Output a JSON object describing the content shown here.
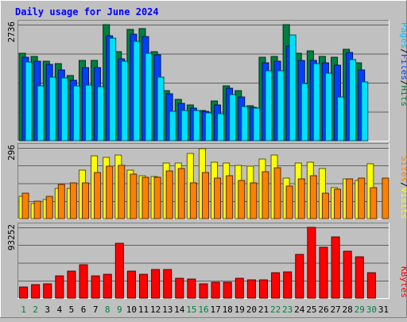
{
  "title": "Daily usage for June 2024",
  "colors": {
    "background": "#C0C0C0",
    "hits": "#008040",
    "files": "#0040FF",
    "pages": "#00E0FF",
    "visits": "#FFFF00",
    "sites": "#FF8000",
    "kbytes": "#FF0000",
    "weekend_day": "#008040",
    "weekday": "#000000"
  },
  "legend": {
    "top": [
      {
        "text": "Pages",
        "color": "#00C0FF"
      },
      {
        "text": "/",
        "color": "#000000"
      },
      {
        "text": "Files",
        "color": "#0040FF"
      },
      {
        "text": "/",
        "color": "#000000"
      },
      {
        "text": "Hits",
        "color": "#008040"
      }
    ],
    "middle": [
      {
        "text": "Sites",
        "color": "#FF8000"
      },
      {
        "text": "/",
        "color": "#000000"
      },
      {
        "text": "Visits",
        "color": "#FFFF00"
      }
    ],
    "bottom": [
      {
        "text": "KBytes",
        "color": "#FF0000"
      }
    ]
  },
  "chart_data": {
    "type": "bar",
    "x": [
      "1",
      "2",
      "3",
      "4",
      "5",
      "6",
      "7",
      "8",
      "9",
      "10",
      "11",
      "12",
      "13",
      "14",
      "15",
      "16",
      "17",
      "18",
      "19",
      "20",
      "21",
      "22",
      "23",
      "24",
      "25",
      "26",
      "27",
      "28",
      "29",
      "30",
      "31"
    ],
    "weekend_days": [
      "1",
      "2",
      "8",
      "9",
      "15",
      "16",
      "22",
      "23",
      "29",
      "30"
    ],
    "panels": [
      {
        "ymax_label": "2736",
        "ymax": 2736,
        "series": [
          {
            "name": "Hits",
            "values": [
              2060,
              1980,
              1870,
              1820,
              1540,
              1890,
              1890,
              2736,
              2100,
              2620,
              2650,
              2090,
              1180,
              970,
              840,
              720,
              930,
              1290,
              1180,
              830,
              1960,
              1980,
              2736,
              2070,
              2120,
              1980,
              1970,
              2150,
              1840,
              0,
              0
            ]
          },
          {
            "name": "Files",
            "values": [
              1960,
              1880,
              1800,
              1660,
              1420,
              1720,
              1720,
              2480,
              1930,
              2520,
              2460,
              2020,
              1110,
              890,
              760,
              700,
              850,
              1230,
              1040,
              780,
              1840,
              1880,
              2230,
              1890,
              1900,
              1840,
              1780,
              2080,
              1670,
              0,
              0
            ]
          },
          {
            "name": "Pages",
            "values": [
              1860,
              1290,
              1500,
              1480,
              1300,
              1320,
              1280,
              2420,
              1870,
              2340,
              2060,
              1500,
              700,
              710,
              710,
              650,
              630,
              1080,
              800,
              760,
              1640,
              1650,
              2500,
              1350,
              1820,
              1600,
              1040,
              1910,
              1390,
              0,
              0
            ]
          }
        ]
      },
      {
        "ymax_label": "296",
        "ymax": 296,
        "series": [
          {
            "name": "Visits",
            "values": [
              92,
              62,
              80,
              126,
              128,
              202,
              262,
              256,
              266,
              204,
              178,
              176,
              234,
              234,
              272,
              292,
              236,
              234,
              222,
              220,
              248,
              266,
              168,
              234,
              236,
              208,
              130,
              166,
              160,
              230,
              0
            ]
          },
          {
            "name": "Sites",
            "values": [
              106,
              72,
              94,
              144,
              150,
              150,
              192,
              220,
              222,
              186,
              172,
              172,
              200,
              210,
              150,
              192,
              170,
              180,
              160,
              150,
              196,
              212,
              136,
              166,
              180,
              108,
              124,
              166,
              170,
              130,
              168
            ]
          }
        ]
      },
      {
        "ymax_label": "93252",
        "ymax": 93252,
        "series": [
          {
            "name": "KBytes",
            "values": [
              15000,
              18000,
              19000,
              29000,
              36000,
              44000,
              29000,
              31000,
              72000,
              36000,
              31000,
              38000,
              38000,
              26000,
              25000,
              19000,
              21000,
              21000,
              26000,
              24000,
              24000,
              34000,
              35000,
              58000,
              93252,
              67000,
              81000,
              62000,
              54000,
              34000,
              0
            ]
          }
        ]
      }
    ]
  }
}
